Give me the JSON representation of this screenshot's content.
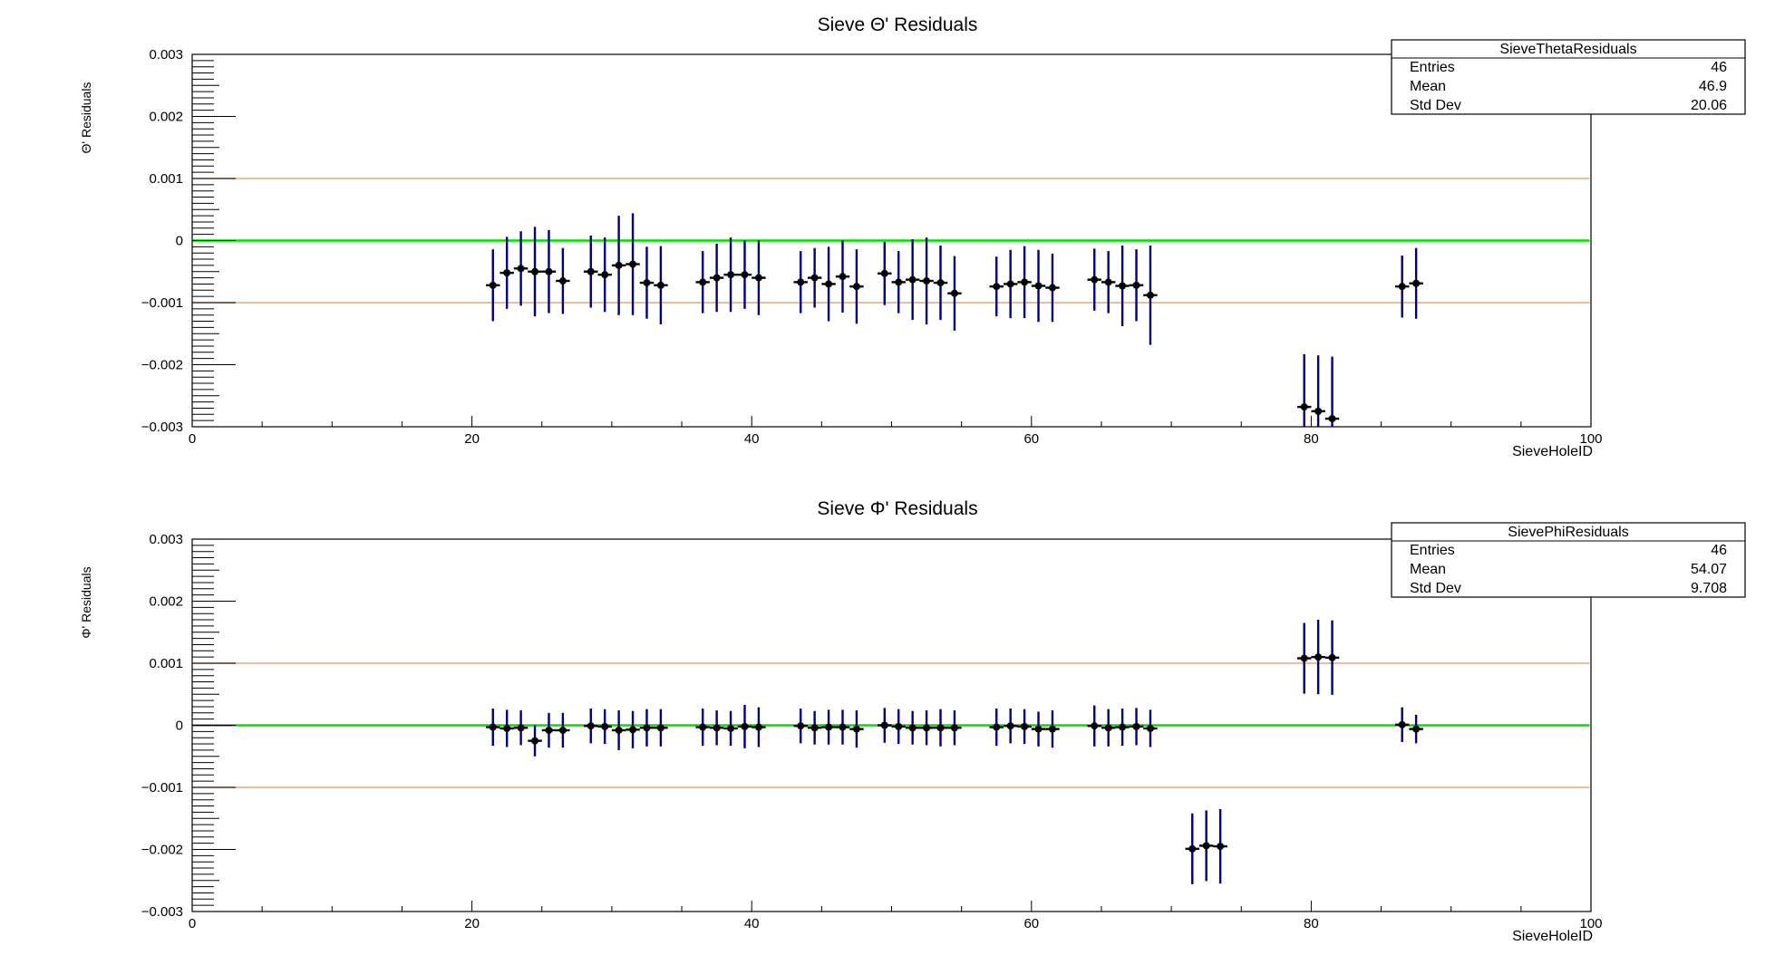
{
  "chart_data": [
    {
      "type": "scatter",
      "title": "Sieve Θ' Residuals",
      "xlabel": "SieveHoleID",
      "ylabel": "Θ' Residuals",
      "xlim": [
        0,
        100
      ],
      "ylim": [
        -0.003,
        0.003
      ],
      "x_ticks": [
        "0",
        "20",
        "40",
        "60",
        "80",
        "100"
      ],
      "y_ticks": [
        "−0.003",
        "−0.002",
        "−0.001",
        "0",
        "0.001",
        "0.002",
        "0.003"
      ],
      "reference_lines": [
        {
          "y": 0,
          "color": "#00e000"
        },
        {
          "y": 0.001,
          "color": "#e8b48c"
        },
        {
          "y": -0.001,
          "color": "#e8b48c"
        }
      ],
      "stats_box": {
        "name": "SieveThetaResiduals",
        "rows": [
          {
            "label": "Entries",
            "value": "46"
          },
          {
            "label": "Mean",
            "value": "46.9"
          },
          {
            "label": "Std Dev",
            "value": "20.06"
          }
        ]
      },
      "series": [
        {
          "marker_color": "#000000",
          "error_color": "#00007f",
          "x": [
            21.5,
            22.5,
            23.5,
            24.5,
            25.5,
            26.5,
            28.5,
            29.5,
            30.5,
            31.5,
            32.5,
            33.5,
            36.5,
            37.5,
            38.5,
            39.5,
            40.5,
            43.5,
            44.5,
            45.5,
            46.5,
            47.5,
            49.5,
            50.5,
            51.5,
            52.5,
            53.5,
            54.5,
            57.5,
            58.5,
            59.5,
            60.5,
            61.5,
            64.5,
            65.5,
            66.5,
            67.5,
            68.5,
            79.5,
            80.5,
            81.5,
            86.5,
            87.5
          ],
          "y": [
            -0.00072,
            -0.00052,
            -0.00045,
            -0.0005,
            -0.0005,
            -0.00065,
            -0.0005,
            -0.00055,
            -0.0004,
            -0.00038,
            -0.00068,
            -0.00072,
            -0.00067,
            -0.0006,
            -0.00055,
            -0.00055,
            -0.0006,
            -0.00067,
            -0.0006,
            -0.0007,
            -0.00058,
            -0.00074,
            -0.00053,
            -0.00067,
            -0.00063,
            -0.00065,
            -0.00068,
            -0.00085,
            -0.00074,
            -0.0007,
            -0.00067,
            -0.00073,
            -0.00076,
            -0.00063,
            -0.00067,
            -0.00073,
            -0.00072,
            -0.00088,
            -0.00268,
            -0.00275,
            -0.00287,
            -0.00074,
            -0.00069
          ],
          "yerr": [
            0.00058,
            0.00058,
            0.0006,
            0.00072,
            0.00067,
            0.00053,
            0.00058,
            0.0006,
            0.0008,
            0.00082,
            0.00058,
            0.00063,
            0.0005,
            0.00055,
            0.0006,
            0.00055,
            0.0006,
            0.0005,
            0.00048,
            0.0006,
            0.00058,
            0.0006,
            0.00051,
            0.0005,
            0.00065,
            0.0007,
            0.0006,
            0.0006,
            0.00048,
            0.00055,
            0.00058,
            0.00058,
            0.00055,
            0.0005,
            0.0005,
            0.00065,
            0.00058,
            0.0008,
            0.00085,
            0.0009,
            0.001,
            0.0005,
            0.00057
          ],
          "xerr": 0.5
        }
      ]
    },
    {
      "type": "scatter",
      "title": "Sieve Φ' Residuals",
      "xlabel": "SieveHoleID",
      "ylabel": "Φ' Residuals",
      "xlim": [
        0,
        100
      ],
      "ylim": [
        -0.003,
        0.003
      ],
      "x_ticks": [
        "0",
        "20",
        "40",
        "60",
        "80",
        "100"
      ],
      "y_ticks": [
        "−0.003",
        "−0.002",
        "−0.001",
        "0",
        "0.001",
        "0.002",
        "0.003"
      ],
      "reference_lines": [
        {
          "y": 0,
          "color": "#00e000"
        },
        {
          "y": 0.001,
          "color": "#e8b48c"
        },
        {
          "y": -0.001,
          "color": "#e8b48c"
        }
      ],
      "stats_box": {
        "name": "SievePhiResiduals",
        "rows": [
          {
            "label": "Entries",
            "value": "46"
          },
          {
            "label": "Mean",
            "value": "54.07"
          },
          {
            "label": "Std Dev",
            "value": "9.708"
          }
        ]
      },
      "series": [
        {
          "marker_color": "#000000",
          "error_color": "#00007f",
          "x": [
            21.5,
            22.5,
            23.5,
            24.5,
            25.5,
            26.5,
            28.5,
            29.5,
            30.5,
            31.5,
            32.5,
            33.5,
            36.5,
            37.5,
            38.5,
            39.5,
            40.5,
            43.5,
            44.5,
            45.5,
            46.5,
            47.5,
            49.5,
            50.5,
            51.5,
            52.5,
            53.5,
            54.5,
            57.5,
            58.5,
            59.5,
            60.5,
            61.5,
            64.5,
            65.5,
            66.5,
            67.5,
            68.5,
            71.5,
            72.5,
            73.5,
            79.5,
            80.5,
            81.5,
            86.5,
            87.5
          ],
          "y": [
            -3e-05,
            -5e-05,
            -4e-05,
            -0.00025,
            -8e-05,
            -8e-05,
            -1e-05,
            -2e-05,
            -8e-05,
            -7e-05,
            -4e-05,
            -4e-05,
            -3e-05,
            -4e-05,
            -5e-05,
            -2e-05,
            -3e-05,
            -1e-05,
            -4e-05,
            -3e-05,
            -3e-05,
            -6e-05,
            0.0,
            -2e-05,
            -4e-05,
            -4e-05,
            -4e-05,
            -4e-05,
            -3e-05,
            -1e-05,
            -2e-05,
            -6e-05,
            -6e-05,
            -1e-05,
            -4e-05,
            -3e-05,
            -2e-05,
            -5e-05,
            -0.00199,
            -0.00194,
            -0.00195,
            0.00108,
            0.0011,
            0.00109,
            1e-05,
            -6e-05
          ],
          "yerr": [
            0.0003,
            0.0003,
            0.00028,
            0.00025,
            0.00028,
            0.00028,
            0.00028,
            0.00028,
            0.00032,
            0.0003,
            0.0003,
            0.0003,
            0.0003,
            0.00028,
            0.00028,
            0.00035,
            0.00032,
            0.00028,
            0.00027,
            0.00028,
            0.00028,
            0.0003,
            0.00028,
            0.00028,
            0.00027,
            0.00028,
            0.0003,
            0.00028,
            0.0003,
            0.00028,
            0.00028,
            0.00028,
            0.0003,
            0.00033,
            0.0003,
            0.0003,
            0.0003,
            0.0003,
            0.00057,
            0.00057,
            0.0006,
            0.00057,
            0.0006,
            0.0006,
            0.00028,
            0.00023
          ],
          "xerr": 0.5
        }
      ]
    }
  ]
}
